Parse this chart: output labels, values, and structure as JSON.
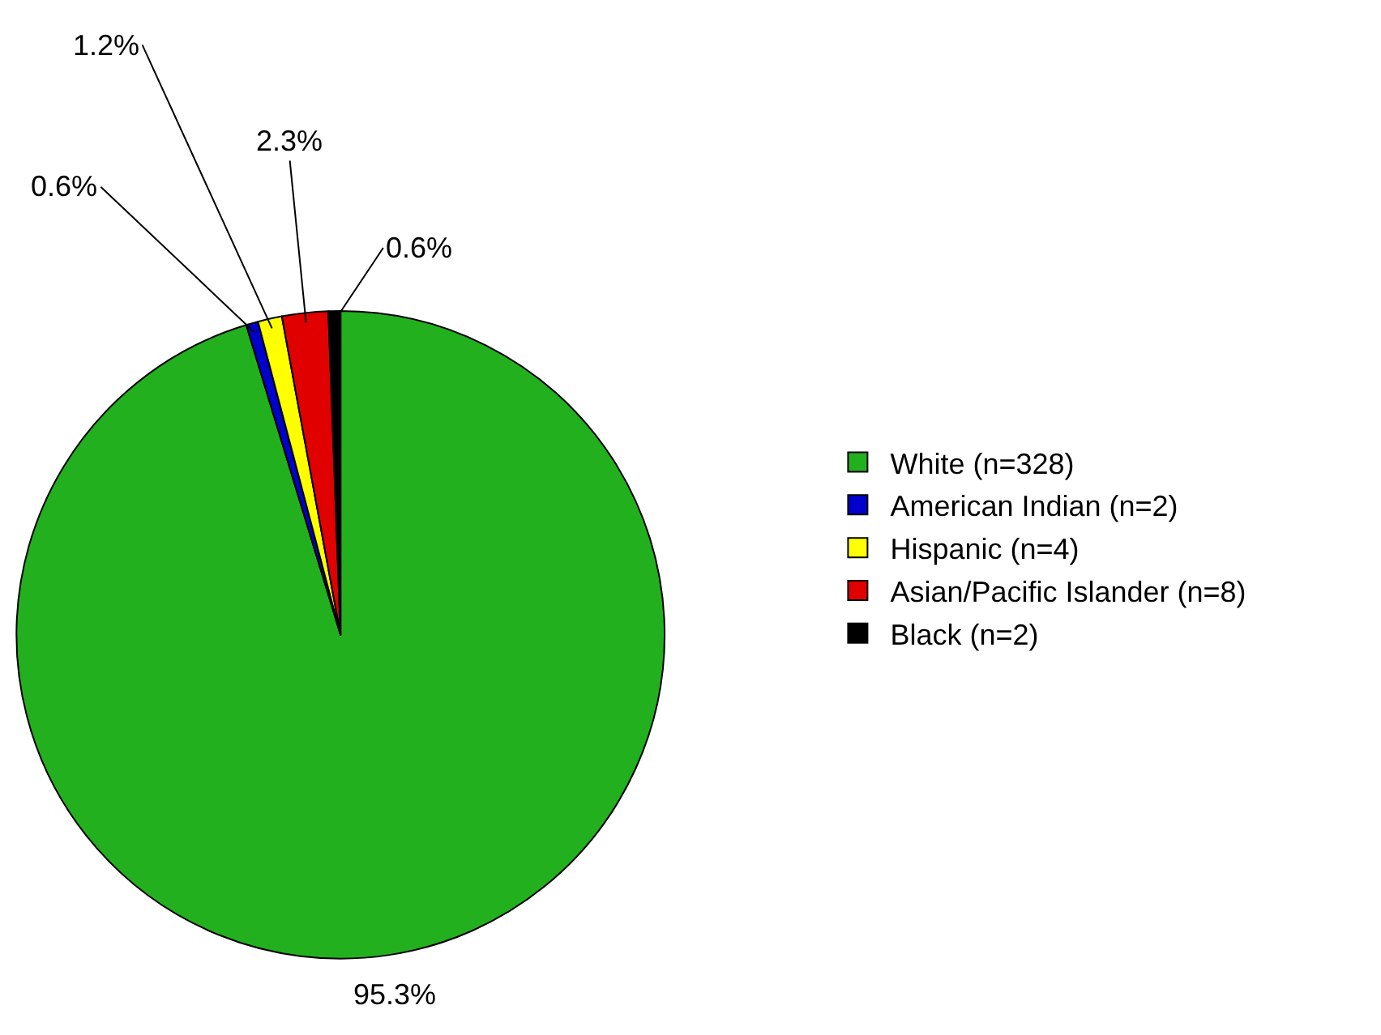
{
  "chart_data": {
    "type": "pie",
    "categories": [
      "White (n=328)",
      "American Indian (n=2)",
      "Hispanic (n=4)",
      "Asian/Pacific Islander (n=8)",
      "Black (n=2)"
    ],
    "values": [
      95.3,
      0.6,
      1.2,
      2.3,
      0.6
    ],
    "value_labels": [
      "95.3%",
      "0.6%",
      "1.2%",
      "2.3%",
      "0.6%"
    ],
    "colors": [
      "#22b01e",
      "#0000cc",
      "#ffff00",
      "#e00000",
      "#000000"
    ],
    "legend": "right"
  }
}
